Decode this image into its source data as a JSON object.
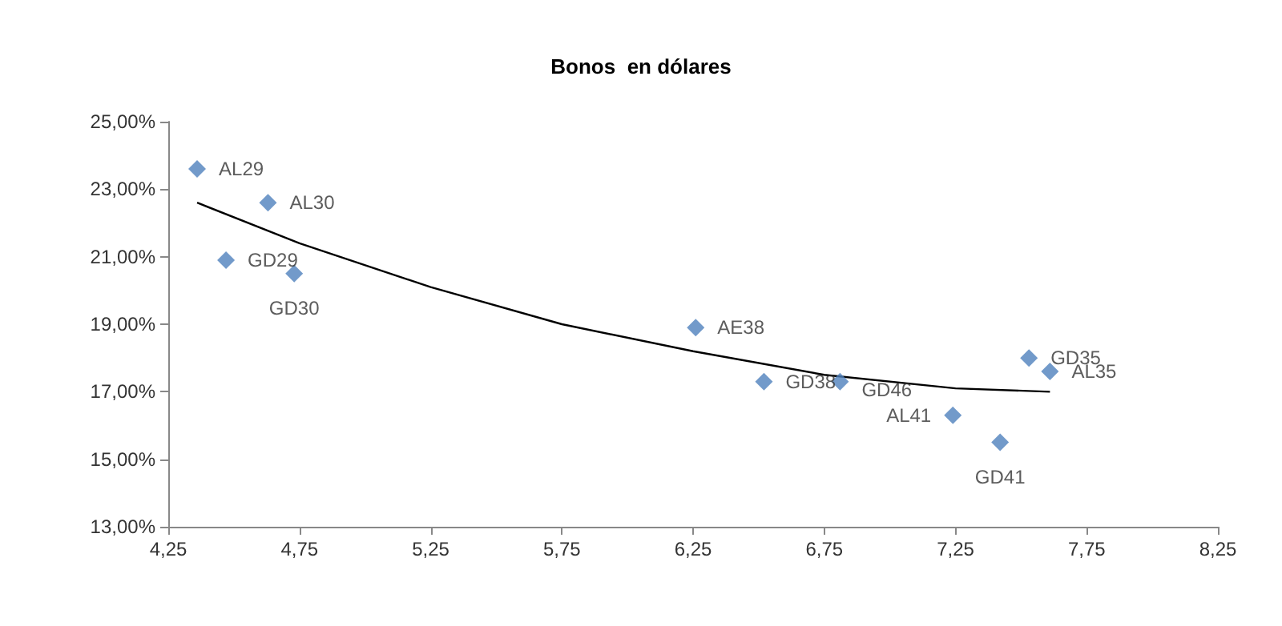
{
  "chart_data": {
    "type": "scatter",
    "title": "Bonos  en dólares",
    "x": [
      4.36,
      4.63,
      4.47,
      4.73,
      6.26,
      6.52,
      6.81,
      7.24,
      7.42,
      7.53,
      7.61
    ],
    "series": [
      {
        "color": "#4f81bd",
        "marker": "diamond",
        "values": [
          23.6,
          22.6,
          20.9,
          20.5,
          18.9,
          17.3,
          17.3,
          16.3,
          15.5,
          18.0,
          17.6
        ]
      },
      {
        "type": "line",
        "color": "#000000",
        "marker": "none",
        "line_style": "solid",
        "x": [
          4.36,
          4.75,
          5.25,
          5.75,
          6.25,
          6.75,
          7.25,
          7.61
        ],
        "values": [
          22.6,
          21.4,
          20.1,
          19.0,
          18.2,
          17.5,
          17.1,
          17.0
        ]
      }
    ],
    "annotations": [
      {
        "text": "AL29",
        "x": 4.36,
        "y": 23.6
      },
      {
        "text": "AL30",
        "x": 4.63,
        "y": 22.6
      },
      {
        "text": "GD29",
        "x": 4.47,
        "y": 20.9
      },
      {
        "text": "GD30",
        "x": 4.73,
        "y": 20.5
      },
      {
        "text": "AE38",
        "x": 6.26,
        "y": 18.9
      },
      {
        "text": "GD38",
        "x": 6.52,
        "y": 17.3
      },
      {
        "text": "GD46",
        "x": 6.81,
        "y": 17.3
      },
      {
        "text": "AL41",
        "x": 7.24,
        "y": 16.3
      },
      {
        "text": "GD41",
        "x": 7.42,
        "y": 15.5
      },
      {
        "text": "GD35",
        "x": 7.53,
        "y": 18.0
      },
      {
        "text": "AL35",
        "x": 7.61,
        "y": 17.6
      }
    ],
    "xlim": [
      4.25,
      8.25
    ],
    "xticks": [
      {
        "value": 4.25,
        "label": "4,25"
      },
      {
        "value": 4.75,
        "label": "4,75"
      },
      {
        "value": 5.25,
        "label": "5,25"
      },
      {
        "value": 5.75,
        "label": "5,75"
      },
      {
        "value": 6.25,
        "label": "6,25"
      },
      {
        "value": 6.75,
        "label": "6,75"
      },
      {
        "value": 7.25,
        "label": "7,25"
      },
      {
        "value": 7.75,
        "label": "7,75"
      },
      {
        "value": 8.25,
        "label": "8,25"
      }
    ],
    "ylim": [
      13,
      25
    ],
    "yticks": [
      {
        "value": 13,
        "label": "13,00%"
      },
      {
        "value": 15,
        "label": "15,00%"
      },
      {
        "value": 17,
        "label": "17,00%"
      },
      {
        "value": 19,
        "label": "19,00%"
      },
      {
        "value": 21,
        "label": "21,00%"
      },
      {
        "value": 23,
        "label": "23,00%"
      },
      {
        "value": 25,
        "label": "25,00%"
      }
    ],
    "grid": false
  }
}
